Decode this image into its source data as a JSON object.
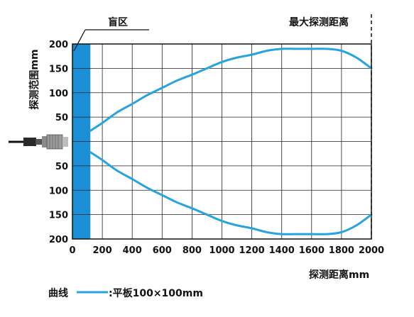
{
  "chart_data": {
    "type": "line",
    "title": "",
    "xlabel": "探测距离mm",
    "ylabel": "探测范围mm",
    "xlim": [
      0,
      2000
    ],
    "x_ticks": [
      "0",
      "200",
      "400",
      "600",
      "800",
      "1000",
      "1200",
      "1400",
      "1600",
      "1800",
      "2000"
    ],
    "y_ticks_upper": [
      "200",
      "150",
      "100",
      "50"
    ],
    "y_ticks_lower": [
      "50",
      "100",
      "150",
      "200"
    ],
    "ylim": [
      -200,
      200
    ],
    "grid": true,
    "curve_color": "#27a3e0",
    "blind_zone": {
      "label": "盲区",
      "x_range": [
        0,
        120
      ],
      "color": "#1b8fd6"
    },
    "max_distance": {
      "label": "最大探测距离",
      "x": 2000
    },
    "legend": {
      "prefix": "曲线",
      "text": ":平板100×100mm"
    },
    "series": [
      {
        "x": [
          120,
          200,
          300,
          400,
          500,
          600,
          700,
          800,
          900,
          1000,
          1100,
          1200,
          1300,
          1400,
          1500,
          1600,
          1700,
          1800,
          1900,
          2000
        ],
        "y": [
          22,
          38,
          60,
          77,
          95,
          110,
          125,
          137,
          150,
          163,
          172,
          178,
          186,
          190,
          190,
          190,
          190,
          186,
          172,
          150
        ]
      }
    ]
  }
}
